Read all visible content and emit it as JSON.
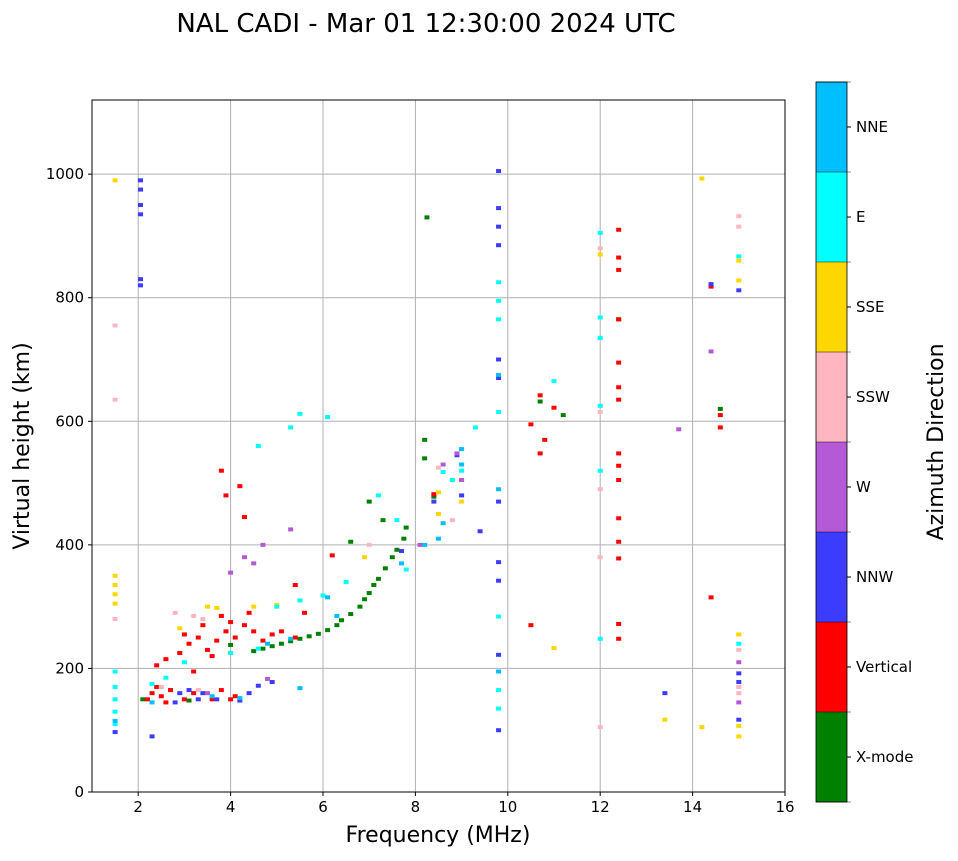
{
  "chart_data": {
    "type": "scatter",
    "title": "NAL CADI - Mar 01 12:30:00 2024 UTC",
    "xlabel": "Frequency (MHz)",
    "ylabel": "Virtual height (km)",
    "xlim": [
      1,
      16
    ],
    "ylim": [
      0,
      1120
    ],
    "xticks": [
      2,
      4,
      6,
      8,
      10,
      12,
      14,
      16
    ],
    "yticks": [
      0,
      200,
      400,
      600,
      800,
      1000
    ],
    "grid": true,
    "colorbar": {
      "label": "Azimuth Direction",
      "categories": [
        "X-mode",
        "Vertical",
        "NNW",
        "W",
        "SSW",
        "SSE",
        "E",
        "NNE"
      ],
      "colors": [
        "#008000",
        "#ff0000",
        "#3c3cff",
        "#b45ad6",
        "#ffb6c1",
        "#ffd700",
        "#00ffff",
        "#00bfff"
      ]
    },
    "points_format": [
      "frequency_mhz",
      "height_km",
      "category_index"
    ],
    "points": [
      [
        4.5,
        228,
        0
      ],
      [
        4.7,
        232,
        0
      ],
      [
        4.9,
        236,
        0
      ],
      [
        5.1,
        240,
        0
      ],
      [
        5.3,
        244,
        0
      ],
      [
        5.5,
        248,
        0
      ],
      [
        5.7,
        252,
        0
      ],
      [
        5.9,
        256,
        0
      ],
      [
        6.1,
        262,
        0
      ],
      [
        6.3,
        270,
        0
      ],
      [
        6.4,
        278,
        0
      ],
      [
        6.6,
        288,
        0
      ],
      [
        6.8,
        300,
        0
      ],
      [
        6.9,
        312,
        0
      ],
      [
        7.0,
        322,
        0
      ],
      [
        7.1,
        335,
        0
      ],
      [
        7.2,
        345,
        0
      ],
      [
        7.35,
        362,
        0
      ],
      [
        7.5,
        380,
        0
      ],
      [
        7.6,
        392,
        0
      ],
      [
        7.75,
        410,
        0
      ],
      [
        7.8,
        428,
        0
      ],
      [
        8.25,
        930,
        0
      ],
      [
        8.2,
        570,
        0
      ],
      [
        8.2,
        540,
        0
      ],
      [
        7.0,
        470,
        0
      ],
      [
        6.6,
        405,
        0
      ],
      [
        12.4,
        765,
        0
      ],
      [
        14.6,
        620,
        0
      ],
      [
        10.7,
        632,
        0
      ],
      [
        11.2,
        610,
        0
      ],
      [
        8.4,
        478,
        0
      ],
      [
        7.3,
        440,
        0
      ],
      [
        2.1,
        150,
        0
      ],
      [
        3.1,
        148,
        0
      ],
      [
        4.0,
        238,
        0
      ],
      [
        2.2,
        150,
        1
      ],
      [
        2.3,
        160,
        1
      ],
      [
        2.4,
        170,
        1
      ],
      [
        2.5,
        155,
        1
      ],
      [
        2.6,
        145,
        1
      ],
      [
        2.7,
        165,
        1
      ],
      [
        3.0,
        150,
        1
      ],
      [
        3.2,
        160,
        1
      ],
      [
        3.6,
        150,
        1
      ],
      [
        3.8,
        165,
        1
      ],
      [
        4.0,
        150,
        1
      ],
      [
        4.1,
        155,
        1
      ],
      [
        2.4,
        205,
        1
      ],
      [
        2.6,
        215,
        1
      ],
      [
        2.9,
        225,
        1
      ],
      [
        3.1,
        240,
        1
      ],
      [
        3.3,
        250,
        1
      ],
      [
        3.5,
        230,
        1
      ],
      [
        3.7,
        245,
        1
      ],
      [
        3.9,
        260,
        1
      ],
      [
        4.1,
        250,
        1
      ],
      [
        4.3,
        270,
        1
      ],
      [
        4.5,
        260,
        1
      ],
      [
        4.7,
        245,
        1
      ],
      [
        4.9,
        255,
        1
      ],
      [
        5.1,
        260,
        1
      ],
      [
        5.4,
        250,
        1
      ],
      [
        3.0,
        255,
        1
      ],
      [
        3.4,
        270,
        1
      ],
      [
        3.8,
        285,
        1
      ],
      [
        4.0,
        275,
        1
      ],
      [
        4.4,
        290,
        1
      ],
      [
        3.2,
        195,
        1
      ],
      [
        3.6,
        220,
        1
      ],
      [
        3.8,
        520,
        1
      ],
      [
        4.2,
        495,
        1
      ],
      [
        4.3,
        445,
        1
      ],
      [
        3.9,
        480,
        1
      ],
      [
        10.5,
        595,
        1
      ],
      [
        10.7,
        642,
        1
      ],
      [
        10.8,
        570,
        1
      ],
      [
        11.0,
        622,
        1
      ],
      [
        10.7,
        548,
        1
      ],
      [
        12.4,
        910,
        1
      ],
      [
        12.4,
        865,
        1
      ],
      [
        12.4,
        845,
        1
      ],
      [
        12.4,
        765,
        1
      ],
      [
        12.4,
        695,
        1
      ],
      [
        12.4,
        655,
        1
      ],
      [
        12.4,
        635,
        1
      ],
      [
        12.4,
        548,
        1
      ],
      [
        12.4,
        528,
        1
      ],
      [
        12.4,
        505,
        1
      ],
      [
        12.4,
        443,
        1
      ],
      [
        12.4,
        405,
        1
      ],
      [
        12.4,
        378,
        1
      ],
      [
        12.4,
        272,
        1
      ],
      [
        12.4,
        248,
        1
      ],
      [
        14.4,
        315,
        1
      ],
      [
        14.4,
        818,
        1
      ],
      [
        14.6,
        610,
        1
      ],
      [
        14.6,
        590,
        1
      ],
      [
        10.5,
        270,
        1
      ],
      [
        8.4,
        482,
        1
      ],
      [
        6.2,
        383,
        1
      ],
      [
        5.4,
        335,
        1
      ],
      [
        5.6,
        290,
        1
      ],
      [
        2.05,
        990,
        2
      ],
      [
        2.05,
        975,
        2
      ],
      [
        2.05,
        950,
        2
      ],
      [
        2.05,
        935,
        2
      ],
      [
        2.05,
        830,
        2
      ],
      [
        2.05,
        820,
        2
      ],
      [
        9.8,
        1005,
        2
      ],
      [
        9.8,
        945,
        2
      ],
      [
        9.8,
        915,
        2
      ],
      [
        9.8,
        885,
        2
      ],
      [
        9.8,
        700,
        2
      ],
      [
        9.8,
        670,
        2
      ],
      [
        9.8,
        470,
        2
      ],
      [
        9.8,
        372,
        2
      ],
      [
        9.8,
        342,
        2
      ],
      [
        9.8,
        222,
        2
      ],
      [
        9.8,
        100,
        2
      ],
      [
        1.5,
        97,
        2
      ],
      [
        2.3,
        90,
        2
      ],
      [
        2.8,
        145,
        2
      ],
      [
        2.9,
        160,
        2
      ],
      [
        3.1,
        165,
        2
      ],
      [
        3.3,
        150,
        2
      ],
      [
        3.4,
        160,
        2
      ],
      [
        3.7,
        150,
        2
      ],
      [
        4.2,
        148,
        2
      ],
      [
        4.4,
        160,
        2
      ],
      [
        4.6,
        172,
        2
      ],
      [
        4.9,
        178,
        2
      ],
      [
        15.0,
        812,
        2
      ],
      [
        15.0,
        192,
        2
      ],
      [
        15.0,
        178,
        2
      ],
      [
        15.0,
        117,
        2
      ],
      [
        14.4,
        822,
        2
      ],
      [
        13.4,
        160,
        2
      ],
      [
        9.4,
        422,
        2
      ],
      [
        9.0,
        480,
        2
      ],
      [
        8.9,
        545,
        2
      ],
      [
        8.4,
        470,
        2
      ],
      [
        7.7,
        390,
        2
      ],
      [
        4.0,
        355,
        3
      ],
      [
        4.3,
        380,
        3
      ],
      [
        4.7,
        400,
        3
      ],
      [
        4.5,
        370,
        3
      ],
      [
        14.4,
        713,
        3
      ],
      [
        13.7,
        587,
        3
      ],
      [
        15.0,
        210,
        3
      ],
      [
        15.0,
        145,
        3
      ],
      [
        9.0,
        505,
        3
      ],
      [
        8.6,
        530,
        3
      ],
      [
        8.9,
        548,
        3
      ],
      [
        5.3,
        425,
        3
      ],
      [
        4.8,
        183,
        3
      ],
      [
        3.5,
        160,
        3
      ],
      [
        8.1,
        400,
        3
      ],
      [
        1.5,
        755,
        4
      ],
      [
        1.5,
        635,
        4
      ],
      [
        1.5,
        280,
        4
      ],
      [
        12.0,
        880,
        4
      ],
      [
        12.0,
        615,
        4
      ],
      [
        12.0,
        490,
        4
      ],
      [
        12.0,
        380,
        4
      ],
      [
        12.0,
        105,
        4
      ],
      [
        15.0,
        915,
        4
      ],
      [
        15.0,
        932,
        4
      ],
      [
        15.0,
        230,
        4
      ],
      [
        15.0,
        170,
        4
      ],
      [
        15.0,
        160,
        4
      ],
      [
        8.5,
        525,
        4
      ],
      [
        2.8,
        290,
        4
      ],
      [
        3.2,
        285,
        4
      ],
      [
        3.4,
        280,
        4
      ],
      [
        2.5,
        170,
        4
      ],
      [
        3.3,
        165,
        4
      ],
      [
        7.0,
        400,
        4
      ],
      [
        8.8,
        440,
        4
      ],
      [
        1.5,
        990,
        5
      ],
      [
        1.5,
        350,
        5
      ],
      [
        1.5,
        335,
        5
      ],
      [
        1.5,
        320,
        5
      ],
      [
        1.5,
        305,
        5
      ],
      [
        14.2,
        993,
        5
      ],
      [
        15.0,
        860,
        5
      ],
      [
        15.0,
        828,
        5
      ],
      [
        15.0,
        255,
        5
      ],
      [
        15.0,
        107,
        5
      ],
      [
        15.0,
        90,
        5
      ],
      [
        13.4,
        117,
        5
      ],
      [
        14.2,
        105,
        5
      ],
      [
        11.0,
        233,
        5
      ],
      [
        12.0,
        870,
        5
      ],
      [
        8.5,
        450,
        5
      ],
      [
        8.5,
        485,
        5
      ],
      [
        3.5,
        300,
        5
      ],
      [
        4.5,
        300,
        5
      ],
      [
        5.0,
        303,
        5
      ],
      [
        3.7,
        298,
        5
      ],
      [
        2.9,
        265,
        5
      ],
      [
        6.9,
        380,
        5
      ],
      [
        9.0,
        470,
        5
      ],
      [
        1.5,
        110,
        6
      ],
      [
        1.5,
        130,
        6
      ],
      [
        1.5,
        150,
        6
      ],
      [
        1.5,
        170,
        6
      ],
      [
        1.5,
        195,
        6
      ],
      [
        9.8,
        825,
        6
      ],
      [
        9.8,
        795,
        6
      ],
      [
        9.8,
        765,
        6
      ],
      [
        9.8,
        615,
        6
      ],
      [
        9.8,
        284,
        6
      ],
      [
        9.8,
        165,
        6
      ],
      [
        9.8,
        135,
        6
      ],
      [
        12.0,
        905,
        6
      ],
      [
        12.0,
        768,
        6
      ],
      [
        12.0,
        735,
        6
      ],
      [
        12.0,
        625,
        6
      ],
      [
        12.0,
        520,
        6
      ],
      [
        12.0,
        248,
        6
      ],
      [
        15.0,
        867,
        6
      ],
      [
        15.0,
        240,
        6
      ],
      [
        11.0,
        665,
        6
      ],
      [
        5.5,
        612,
        6
      ],
      [
        6.1,
        607,
        6
      ],
      [
        5.3,
        590,
        6
      ],
      [
        4.6,
        560,
        6
      ],
      [
        7.2,
        480,
        6
      ],
      [
        7.6,
        440,
        6
      ],
      [
        8.6,
        518,
        6
      ],
      [
        8.8,
        505,
        6
      ],
      [
        5.0,
        300,
        6
      ],
      [
        5.5,
        310,
        6
      ],
      [
        6.0,
        318,
        6
      ],
      [
        6.5,
        340,
        6
      ],
      [
        2.3,
        175,
        6
      ],
      [
        2.6,
        185,
        6
      ],
      [
        3.0,
        210,
        6
      ],
      [
        4.0,
        225,
        6
      ],
      [
        4.6,
        232,
        6
      ],
      [
        7.8,
        360,
        6
      ],
      [
        9.0,
        520,
        6
      ],
      [
        9.3,
        590,
        6
      ],
      [
        9.0,
        555,
        7
      ],
      [
        9.0,
        530,
        7
      ],
      [
        8.6,
        435,
        7
      ],
      [
        8.5,
        410,
        7
      ],
      [
        6.3,
        285,
        7
      ],
      [
        5.5,
        168,
        7
      ],
      [
        4.2,
        152,
        7
      ],
      [
        7.7,
        370,
        7
      ],
      [
        8.2,
        400,
        7
      ],
      [
        1.5,
        115,
        7
      ],
      [
        9.8,
        195,
        7
      ],
      [
        9.8,
        490,
        7
      ],
      [
        9.8,
        675,
        7
      ],
      [
        2.3,
        145,
        7
      ],
      [
        6.1,
        315,
        7
      ],
      [
        5.3,
        248,
        7
      ],
      [
        4.8,
        240,
        7
      ],
      [
        3.6,
        155,
        7
      ]
    ]
  }
}
